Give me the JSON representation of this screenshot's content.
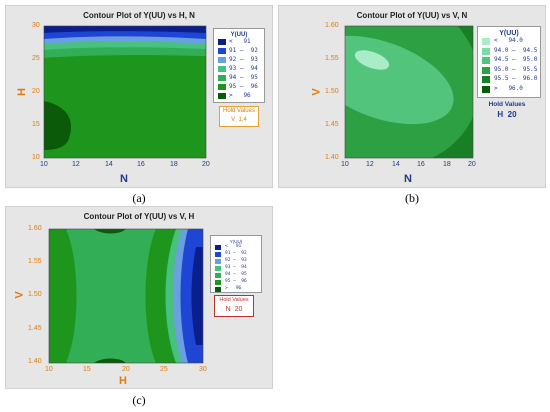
{
  "captions": [
    "(a)",
    "(b)",
    "(c)"
  ],
  "colors": {
    "bg": "#e6e6e6",
    "axis_x": "#1f3a8a",
    "axis_y": "#e07b10",
    "hold_c": "#c0302a"
  },
  "chart_data": [
    {
      "type": "contour",
      "title": "Contour Plot of Y(UU) vs H, N",
      "xlabel": "N",
      "ylabel": "H",
      "xlim": [
        10,
        20
      ],
      "ylim": [
        10,
        30
      ],
      "xticks": [
        "10",
        "12",
        "14",
        "16",
        "18",
        "20"
      ],
      "yticks": [
        "10",
        "15",
        "20",
        "25",
        "30"
      ],
      "legend": {
        "title": "Y(UU)",
        "entries": [
          "<   91",
          "91 –  92",
          "92 –  93",
          "93 –  94",
          "94 –  95",
          "95 –  96",
          ">   96"
        ],
        "colors": [
          "#0a1e8c",
          "#1f45d4",
          "#6aa0e0",
          "#48c080",
          "#32ae56",
          "#1e961e",
          "#0a5a0a"
        ]
      },
      "hold_values": {
        "label": "Hold Values",
        "var": "V",
        "value": "1.4"
      }
    },
    {
      "type": "contour",
      "title": "Contour Plot of Y(UU) vs V, N",
      "xlabel": "N",
      "ylabel": "V",
      "xlim": [
        10,
        20
      ],
      "ylim": [
        1.4,
        1.6
      ],
      "xticks": [
        "10",
        "12",
        "14",
        "16",
        "18",
        "20"
      ],
      "yticks": [
        "1.40",
        "1.45",
        "1.50",
        "1.55",
        "1.60"
      ],
      "legend": {
        "title": "Y(UU)",
        "entries": [
          "<   94.0",
          "94.0 –  94.5",
          "94.5 –  95.0",
          "95.0 –  95.5",
          "95.5 –  96.0",
          ">   96.0"
        ],
        "colors": [
          "#a8ecc8",
          "#7cdca8",
          "#52c47c",
          "#2ea044",
          "#1a7e26",
          "#0a5a0a"
        ]
      },
      "hold_values": {
        "label": "Hold Values",
        "var": "H",
        "value": "20"
      }
    },
    {
      "type": "contour",
      "title": "Contour Plot of Y(UU) vs V, H",
      "xlabel": "H",
      "ylabel": "V",
      "xlim": [
        10,
        30
      ],
      "ylim": [
        1.4,
        1.6
      ],
      "xticks": [
        "10",
        "15",
        "20",
        "25",
        "30"
      ],
      "yticks": [
        "1.40",
        "1.45",
        "1.50",
        "1.55",
        "1.60"
      ],
      "legend": {
        "title": "Y(UU)",
        "entries": [
          "<   91",
          "91 –  92",
          "92 –  93",
          "93 –  94",
          "94 –  95",
          "95 –  96",
          ">   96"
        ],
        "colors": [
          "#0a1e8c",
          "#1f45d4",
          "#6aa0e0",
          "#48c080",
          "#32ae56",
          "#1e961e",
          "#0a5a0a"
        ]
      },
      "hold_values": {
        "label": "Hold Values",
        "var": "N",
        "value": "20"
      }
    }
  ]
}
